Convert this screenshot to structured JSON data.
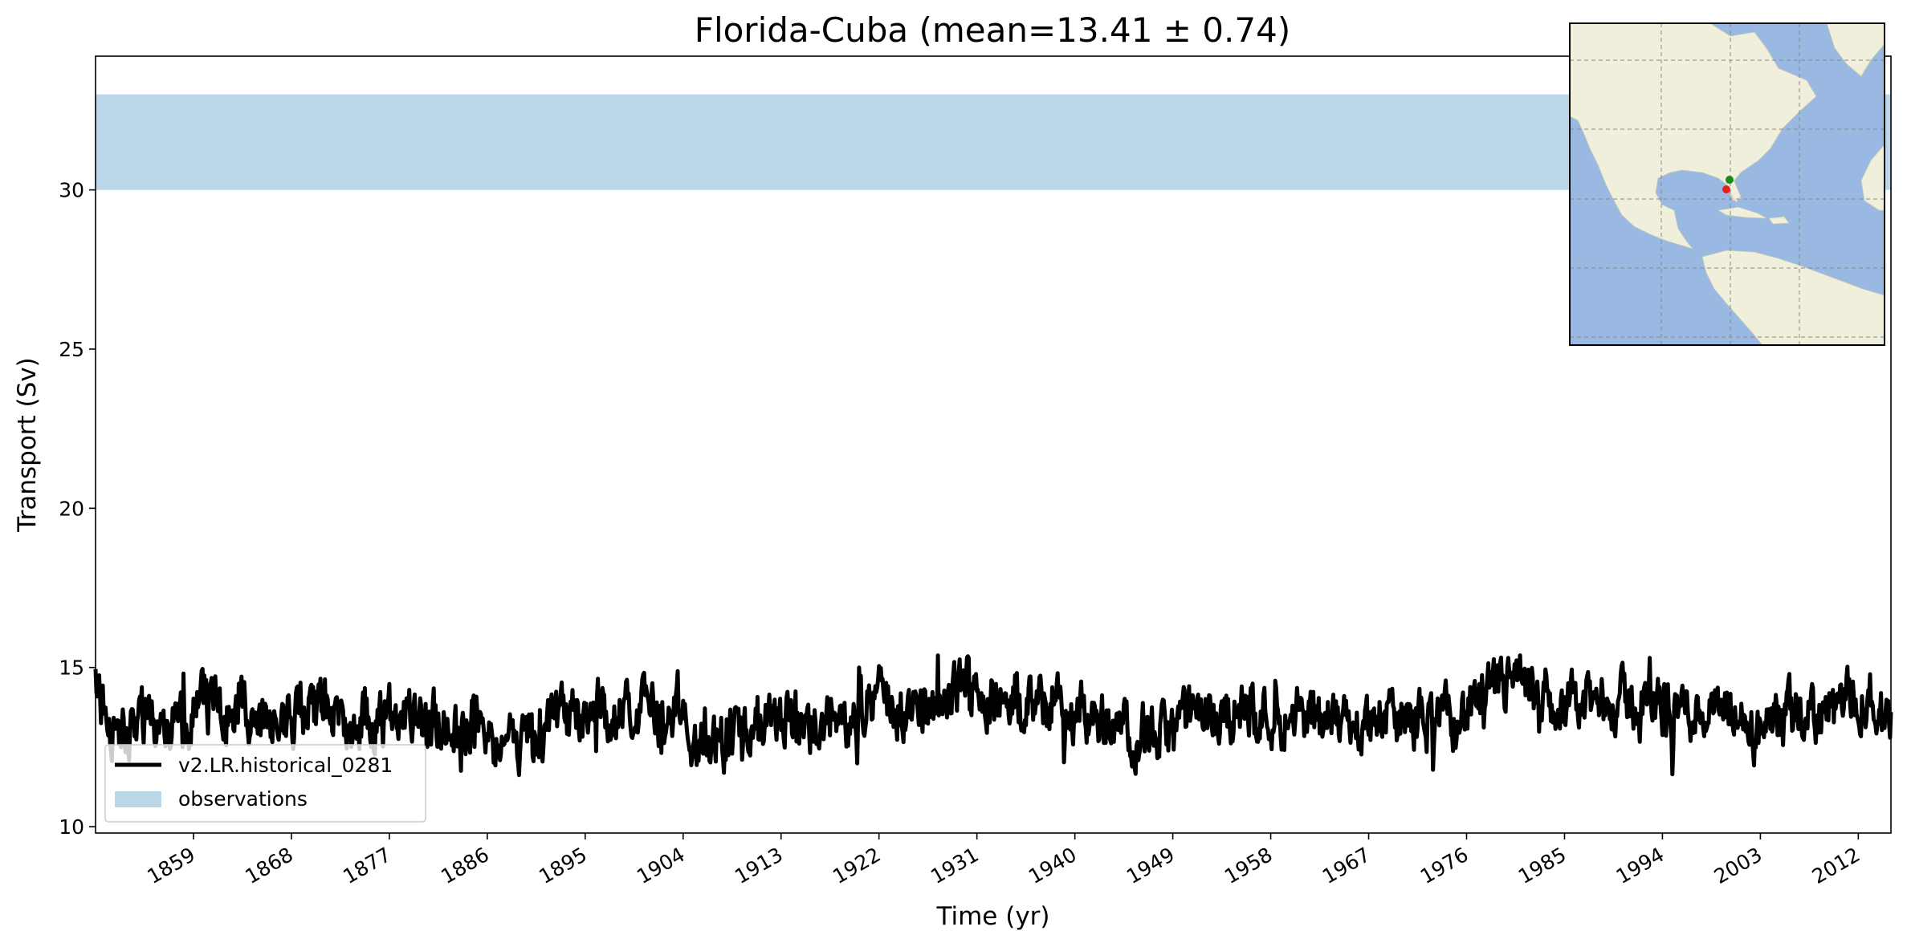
{
  "chart_data": {
    "type": "line",
    "title": "Florida-Cuba (mean=13.41 ± 0.74)",
    "xlabel": "Time (yr)",
    "ylabel": "Transport (Sv)",
    "xlim": [
      1850,
      2015
    ],
    "ylim": [
      9.8,
      34.2
    ],
    "xticks": [
      1859,
      1868,
      1877,
      1886,
      1895,
      1904,
      1913,
      1922,
      1931,
      1940,
      1949,
      1958,
      1967,
      1976,
      1985,
      1994,
      2003,
      2012
    ],
    "xtick_labels": [
      "1859",
      "1868",
      "1877",
      "1886",
      "1895",
      "1904",
      "1913",
      "1922",
      "1931",
      "1940",
      "1949",
      "1958",
      "1967",
      "1976",
      "1985",
      "1994",
      "2003",
      "2012"
    ],
    "yticks": [
      10,
      15,
      20,
      25,
      30
    ],
    "ytick_labels": [
      "10",
      "15",
      "20",
      "25",
      "30"
    ],
    "series": [
      {
        "name": "v2.LR.historical_0281",
        "color": "#000000",
        "mean": 13.41,
        "std": 0.74,
        "x_start": 1850,
        "x_end": 2015,
        "anchors": [
          [
            1850,
            14.2
          ],
          [
            1852,
            13.0
          ],
          [
            1855,
            13.4
          ],
          [
            1858,
            13.2
          ],
          [
            1860,
            13.8
          ],
          [
            1865,
            13.3
          ],
          [
            1870,
            13.6
          ],
          [
            1875,
            13.4
          ],
          [
            1880,
            13.3
          ],
          [
            1885,
            13.1
          ],
          [
            1887,
            12.4
          ],
          [
            1889,
            12.5
          ],
          [
            1892,
            13.2
          ],
          [
            1895,
            13.5
          ],
          [
            1900,
            13.5
          ],
          [
            1903,
            13.6
          ],
          [
            1906,
            12.6
          ],
          [
            1909,
            12.8
          ],
          [
            1913,
            13.3
          ],
          [
            1918,
            13.2
          ],
          [
            1922,
            14.0
          ],
          [
            1925,
            13.7
          ],
          [
            1928,
            13.6
          ],
          [
            1930,
            14.7
          ],
          [
            1932,
            14.2
          ],
          [
            1935,
            13.8
          ],
          [
            1940,
            13.7
          ],
          [
            1945,
            13.1
          ],
          [
            1948,
            12.8
          ],
          [
            1951,
            13.5
          ],
          [
            1955,
            13.6
          ],
          [
            1960,
            13.5
          ],
          [
            1965,
            13.2
          ],
          [
            1970,
            13.3
          ],
          [
            1975,
            13.4
          ],
          [
            1978,
            14.0
          ],
          [
            1980,
            14.6
          ],
          [
            1983,
            13.7
          ],
          [
            1986,
            13.8
          ],
          [
            1990,
            13.9
          ],
          [
            1995,
            13.8
          ],
          [
            2000,
            13.5
          ],
          [
            2003,
            12.8
          ],
          [
            2006,
            13.5
          ],
          [
            2010,
            13.6
          ],
          [
            2012,
            14.3
          ],
          [
            2015,
            13.6
          ]
        ]
      },
      {
        "name": "observations",
        "color": "#bad6e8",
        "type": "band",
        "y_range": [
          30,
          33
        ]
      }
    ],
    "legend": {
      "position": "lower-left",
      "entries": [
        "v2.LR.historical_0281",
        "observations"
      ]
    },
    "grid": false
  },
  "inset_map": {
    "region": "North Atlantic / Americas",
    "ocean_color": "#99b9e2",
    "land_color": "#efefdb",
    "gridlines": true,
    "markers": [
      {
        "name": "florida-point",
        "color": "#1a8a1a"
      },
      {
        "name": "cuba-point",
        "color": "#e8201a"
      }
    ]
  }
}
